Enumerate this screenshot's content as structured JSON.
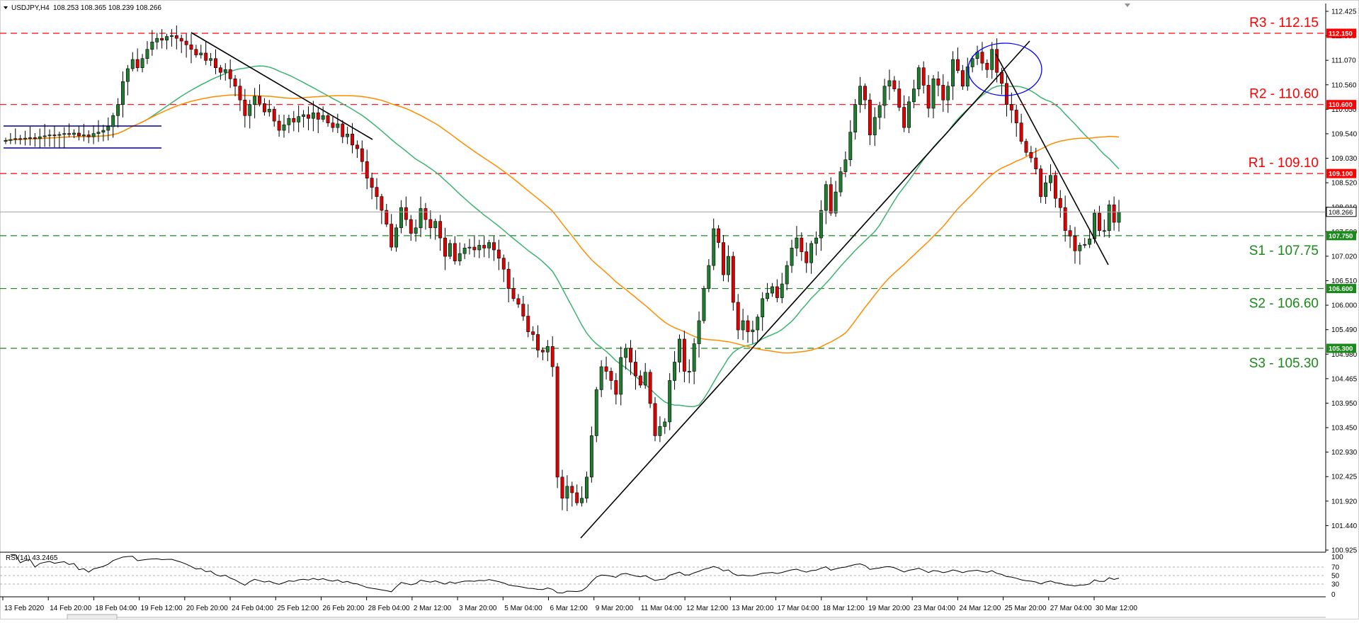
{
  "header": {
    "symbol": "USDJPY,H4",
    "quote": "108.253 108.365 108.239 108.266"
  },
  "rsi_header": "RSI(14) 43.2465",
  "chart_data": {
    "type": "candlestick",
    "title": "USDJPY,H4",
    "ylim": [
      100.8,
      112.4
    ],
    "y_ticks": [
      "112.425",
      "111.580",
      "111.070",
      "110.560",
      "110.050",
      "109.540",
      "109.030",
      "108.520",
      "108.010",
      "107.500",
      "107.020",
      "106.510",
      "106.000",
      "105.490",
      "104.980",
      "104.465",
      "103.950",
      "103.450",
      "102.930",
      "102.425",
      "101.920",
      "101.440",
      "100.925"
    ],
    "x_ticks": [
      "13 Feb 2020",
      "14 Feb 20:00",
      "18 Feb 04:00",
      "19 Feb 12:00",
      "20 Feb 20:00",
      "24 Feb 04:00",
      "25 Feb 12:00",
      "26 Feb 20:00",
      "28 Feb 04:00",
      "2 Mar 12:00",
      "3 Mar 20:00",
      "5 Mar 04:00",
      "6 Mar 12:00",
      "9 Mar 20:00",
      "11 Mar 04:00",
      "12 Mar 12:00",
      "13 Mar 20:00",
      "17 Mar 04:00",
      "18 Mar 12:00",
      "19 Mar 20:00",
      "23 Mar 04:00",
      "24 Mar 12:00",
      "25 Mar 20:00",
      "27 Mar 04:00",
      "30 Mar 12:00"
    ],
    "levels": [
      {
        "label": "R3 - 112.15",
        "value": 112.15,
        "tag": "112.150",
        "kind": "resistance"
      },
      {
        "label": "R2 - 110.60",
        "value": 110.6,
        "tag": "110.600",
        "kind": "resistance"
      },
      {
        "label": "R1 - 109.10",
        "value": 109.1,
        "tag": "109.100",
        "kind": "resistance"
      },
      {
        "label": "S1 - 107.75",
        "value": 107.75,
        "tag": "107.750",
        "kind": "support"
      },
      {
        "label": "S2 - 106.60",
        "value": 106.6,
        "tag": "106.600",
        "kind": "support"
      },
      {
        "label": "S3 - 105.30",
        "value": 105.3,
        "tag": "105.300",
        "kind": "support"
      }
    ],
    "current_price": {
      "value": 108.266,
      "tag": "108.266"
    },
    "close_series": [
      109.82,
      109.84,
      109.86,
      109.85,
      109.87,
      109.88,
      109.86,
      109.9,
      109.92,
      109.94,
      109.93,
      109.95,
      109.97,
      109.95,
      109.98,
      109.92,
      109.94,
      109.9,
      109.97,
      110.0,
      110.04,
      110.12,
      110.36,
      110.6,
      111.1,
      111.38,
      111.58,
      111.4,
      111.6,
      111.8,
      111.96,
      112.04,
      112.0,
      112.08,
      112.1,
      112.04,
      111.98,
      111.9,
      111.8,
      111.68,
      111.72,
      111.56,
      111.6,
      111.4,
      111.3,
      111.36,
      111.16,
      111.0,
      110.7,
      110.36,
      110.6,
      110.78,
      110.62,
      110.44,
      110.5,
      110.24,
      110.04,
      110.16,
      110.3,
      110.22,
      110.34,
      110.38,
      110.3,
      110.42,
      110.28,
      110.36,
      110.2,
      110.1,
      110.18,
      109.9,
      109.96,
      109.72,
      109.64,
      109.36,
      109.0,
      108.8,
      108.6,
      108.3,
      108.0,
      107.5,
      107.92,
      108.36,
      108.1,
      107.8,
      107.92,
      108.34,
      108.1,
      107.92,
      108.06,
      107.7,
      107.3,
      107.58,
      107.2,
      107.36,
      107.48,
      107.5,
      107.44,
      107.54,
      107.48,
      107.6,
      107.44,
      107.26,
      107.02,
      106.6,
      106.38,
      106.26,
      106.0,
      105.66,
      105.6,
      105.26,
      105.22,
      105.34,
      104.9,
      102.5,
      102.04,
      102.3,
      102.16,
      101.94,
      102.04,
      102.5,
      103.4,
      104.4,
      104.9,
      104.8,
      104.6,
      104.3,
      105.1,
      105.3,
      105.0,
      104.7,
      104.5,
      104.78,
      104.1,
      103.4,
      103.6,
      103.7,
      104.6,
      105.0,
      105.5,
      104.8,
      104.8,
      105.4,
      105.9,
      106.6,
      107.1,
      107.9,
      107.6,
      106.9,
      107.3,
      106.3,
      105.7,
      105.9,
      105.66,
      105.7,
      105.98,
      106.38,
      106.5,
      106.64,
      106.4,
      106.7,
      107.1,
      107.48,
      107.7,
      107.4,
      107.16,
      107.58,
      107.7,
      108.3,
      108.86,
      108.24,
      108.7,
      109.14,
      109.4,
      110.0,
      110.6,
      111.0,
      110.7,
      109.94,
      110.32,
      110.58,
      111.0,
      111.12,
      110.94,
      110.54,
      110.1,
      110.66,
      110.94,
      111.4,
      111.02,
      110.52,
      111.16,
      111.02,
      110.7,
      111.0,
      111.58,
      111.34,
      111.0,
      111.42,
      111.6,
      111.74,
      111.5,
      111.36,
      111.8,
      111.3,
      111.06,
      110.6,
      110.48,
      110.2,
      109.8,
      109.56,
      109.44,
      109.2,
      108.6,
      108.9,
      109.06,
      108.56,
      108.36,
      107.86,
      107.74,
      107.42,
      107.54,
      107.56,
      107.68,
      108.24,
      107.86,
      107.86,
      108.42,
      108.04,
      108.266
    ],
    "series": [
      {
        "name": "MA green",
        "color": "#3cb371"
      },
      {
        "name": "MA orange",
        "color": "#ff8c00"
      }
    ],
    "rsi": {
      "value": 43.2465,
      "levels": [
        "100",
        "70",
        "50",
        "30",
        "0"
      ],
      "ylim": [
        0,
        100
      ]
    }
  },
  "colors": {
    "bull": "#1e7d2e",
    "bear": "#e00000",
    "resistance": "#ff0000",
    "support": "#1a8a1a",
    "ma_green": "#3cb371",
    "ma_orange": "#ff8c00",
    "ellipse": "#0000ff",
    "hline": "#00008b"
  }
}
